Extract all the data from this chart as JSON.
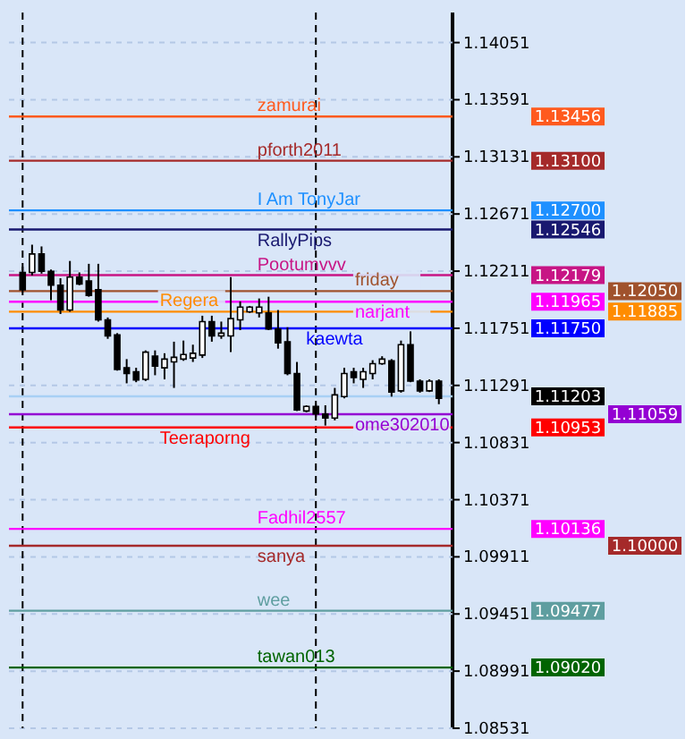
{
  "chart_data": {
    "type": "candlestick",
    "categories": [
      null,
      null,
      null,
      null,
      null,
      null,
      null,
      null,
      null,
      null,
      null,
      null,
      null,
      null,
      null,
      null,
      null,
      null,
      null,
      null,
      null,
      null,
      null,
      null,
      null,
      null,
      null,
      null,
      null,
      null,
      null,
      null,
      null,
      null,
      null,
      null,
      null,
      null,
      null,
      null,
      null,
      null,
      null,
      null,
      null
    ],
    "series": [
      {
        "color": "#000000",
        "ohlc": [
          [
            1.12201,
            1.12247,
            1.12038,
            1.12061
          ],
          [
            1.12201,
            1.12424,
            1.12177,
            1.12349
          ],
          [
            1.12349,
            1.1241,
            1.12191,
            1.1221
          ],
          [
            1.1221,
            1.12224,
            1.11977,
            1.12098
          ],
          [
            1.12098,
            1.12154,
            1.11866,
            1.11898
          ],
          [
            1.11898,
            1.12293,
            1.11884,
            1.12163
          ],
          [
            1.12163,
            1.12201,
            1.12098,
            1.12107
          ],
          [
            1.12131,
            1.1227,
            1.12005,
            1.12015
          ],
          [
            1.12061,
            1.1227,
            1.11805,
            1.11819
          ],
          [
            1.11819,
            1.11838,
            1.11666,
            1.11689
          ],
          [
            1.11698,
            1.11712,
            1.1141,
            1.11419
          ],
          [
            1.11433,
            1.11503,
            1.11308,
            1.11387
          ],
          [
            1.11401,
            1.11433,
            1.11317,
            1.11335
          ],
          [
            1.1134,
            1.11573,
            1.11326,
            1.11559
          ],
          [
            1.11526,
            1.11573,
            1.11373,
            1.11447
          ],
          [
            1.11433,
            1.1155,
            1.1134,
            1.11503
          ],
          [
            1.1148,
            1.11643,
            1.11271,
            1.11517
          ],
          [
            1.11503,
            1.11652,
            1.11489,
            1.1154
          ],
          [
            1.11512,
            1.11619,
            1.1148,
            1.1155
          ],
          [
            1.11535,
            1.11852,
            1.11512,
            1.11805
          ],
          [
            1.11805,
            1.11852,
            1.11643,
            1.11689
          ],
          [
            1.11689,
            1.11805,
            1.11666,
            1.11712
          ],
          [
            1.11689,
            1.12163,
            1.11559,
            1.11829
          ],
          [
            1.11819,
            1.11968,
            1.11736,
            1.11922
          ],
          [
            1.11884,
            1.11931,
            1.11875,
            1.11922
          ],
          [
            1.11875,
            1.11991,
            1.11838,
            1.11922
          ],
          [
            1.11875,
            1.12005,
            1.11736,
            1.11745
          ],
          [
            1.11745,
            1.11898,
            1.11587,
            1.11633
          ],
          [
            1.11643,
            1.11759,
            1.11373,
            1.11387
          ],
          [
            1.11387,
            1.1148,
            1.11085,
            1.11094
          ],
          [
            1.11085,
            1.11131,
            1.11075,
            1.11122
          ],
          [
            1.11122,
            1.1114,
            1.11038,
            1.11061
          ],
          [
            1.11061,
            1.11131,
            1.10968,
            1.11029
          ],
          [
            1.11029,
            1.11271,
            1.1101,
            1.11215
          ],
          [
            1.11201,
            1.11433,
            1.11187,
            1.11387
          ],
          [
            1.11401,
            1.11433,
            1.11308,
            1.11354
          ],
          [
            1.1134,
            1.11433,
            1.11271,
            1.11401
          ],
          [
            1.11387,
            1.11494,
            1.1134,
            1.11466
          ],
          [
            1.11466,
            1.11526,
            1.11457,
            1.11503
          ],
          [
            1.11489,
            1.11503,
            1.11201,
            1.11238
          ],
          [
            1.11247,
            1.11652,
            1.11233,
            1.11619
          ],
          [
            1.11619,
            1.11726,
            1.11317,
            1.11326
          ],
          [
            1.11326,
            1.1134,
            1.11233,
            1.11247
          ],
          [
            1.11247,
            1.1134,
            1.11238,
            1.11326
          ],
          [
            1.11326,
            1.1134,
            1.1114,
            1.11187
          ]
        ]
      }
    ],
    "ylim": [
      1.08531,
      1.14293
    ],
    "yticks": [
      1.14051,
      1.13591,
      1.13131,
      1.12671,
      1.12211,
      1.11751,
      1.11291,
      1.10831,
      1.10371,
      1.09911,
      1.09451,
      1.08991,
      1.08531
    ],
    "grid": "y",
    "tick_labels": "y",
    "annotations": [
      "1.13456",
      "1.13100",
      "1.12700",
      "1.12546",
      "1.12179",
      "1.12050",
      "1.11965",
      "1.11885",
      "1.11750",
      "1.11203",
      "1.11059",
      "1.10953",
      "1.10136",
      "1.10000",
      "1.09477",
      "1.09020"
    ],
    "ref_lines": [
      {
        "axis": "y",
        "value": 1.13456,
        "label": "zamurai",
        "color": "#ff5a1e"
      },
      {
        "axis": "y",
        "value": 1.131,
        "label": "pforth2011",
        "color": "#a52a2a"
      },
      {
        "axis": "y",
        "value": 1.127,
        "label": "I Am TonyJar",
        "color": "#1e90ff"
      },
      {
        "axis": "y",
        "value": 1.12546,
        "label": "RallyPips",
        "color": "#191970"
      },
      {
        "axis": "y",
        "value": 1.12179,
        "label": "Pootumvvv",
        "color": "#c71585"
      },
      {
        "axis": "y",
        "value": 1.1205,
        "label": "friday",
        "color": "#a0522d"
      },
      {
        "axis": "y",
        "value": 1.11965,
        "label": "narjant",
        "color": "#ff00ff"
      },
      {
        "axis": "y",
        "value": 1.11885,
        "label": "Regera",
        "color": "#ff8c00"
      },
      {
        "axis": "y",
        "value": 1.1175,
        "label": "kaewta",
        "color": "#0000ff"
      },
      {
        "axis": "y",
        "value": 1.11203,
        "label": null,
        "color": "#a8d0f5"
      },
      {
        "axis": "y",
        "value": 1.11059,
        "label": "ome302010",
        "color": "#9400d3"
      },
      {
        "axis": "y",
        "value": 1.10953,
        "label": "Teeraporng",
        "color": "#ff0000"
      },
      {
        "axis": "y",
        "value": 1.10136,
        "label": "Fadhil2557",
        "color": "#ff00ff"
      },
      {
        "axis": "y",
        "value": 1.1,
        "label": "sanya",
        "color": "#a52a2a"
      },
      {
        "axis": "y",
        "value": 1.09477,
        "label": "wee",
        "color": "#5f9ea0"
      },
      {
        "axis": "y",
        "value": 1.0902,
        "label": "tawan013",
        "color": "#006400"
      }
    ]
  }
}
